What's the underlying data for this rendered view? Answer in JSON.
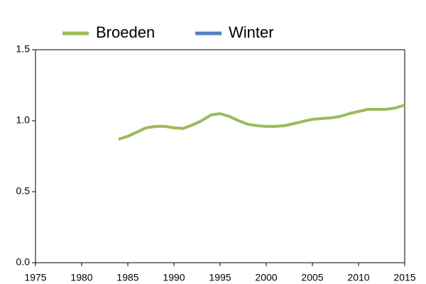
{
  "chart_data": {
    "type": "line",
    "x": [
      1984,
      1985,
      1986,
      1987,
      1988,
      1989,
      1990,
      1991,
      1992,
      1993,
      1994,
      1995,
      1996,
      1997,
      1998,
      1999,
      2000,
      2001,
      2002,
      2003,
      2004,
      2005,
      2006,
      2007,
      2008,
      2009,
      2010,
      2011,
      2012,
      2013,
      2014,
      2015
    ],
    "series": [
      {
        "name": "Broeden",
        "color": "#9bbb59",
        "values": [
          0.87,
          0.89,
          0.92,
          0.95,
          0.96,
          0.96,
          0.95,
          0.945,
          0.97,
          1.0,
          1.04,
          1.05,
          1.03,
          1.0,
          0.975,
          0.965,
          0.96,
          0.96,
          0.965,
          0.98,
          0.995,
          1.01,
          1.015,
          1.02,
          1.03,
          1.05,
          1.065,
          1.08,
          1.08,
          1.08,
          1.09,
          1.11
        ]
      },
      {
        "name": "Winter",
        "color": "#4f81bd",
        "values": [
          null,
          null,
          null,
          null,
          null,
          null,
          null,
          null,
          null,
          null,
          null,
          null,
          null,
          null,
          null,
          null,
          null,
          null,
          null,
          null,
          null,
          null,
          null,
          null,
          null,
          null,
          null,
          null,
          null,
          null,
          null,
          null
        ]
      }
    ],
    "xlim": [
      1975,
      2015
    ],
    "xticks": [
      1975,
      1980,
      1985,
      1990,
      1995,
      2000,
      2005,
      2010,
      2015
    ],
    "ylim": [
      0,
      1.5
    ],
    "yticks": [
      {
        "value": 0,
        "label": "0.0"
      },
      0.5,
      {
        "value": 1,
        "label": "1.0"
      },
      1.5
    ],
    "legend": "top"
  }
}
